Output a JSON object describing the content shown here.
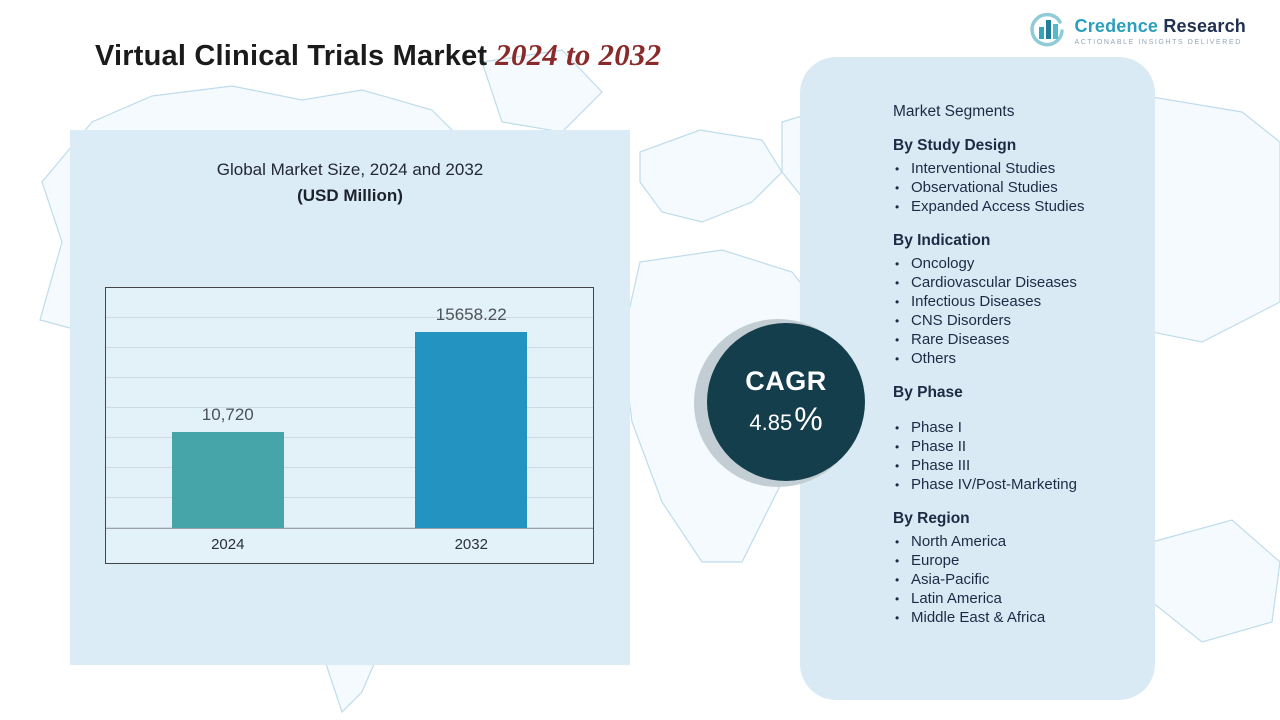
{
  "header": {
    "title_main": "Virtual Clinical Trials Market",
    "title_range": "2024 to 2032"
  },
  "logo": {
    "brand_primary": "Credence",
    "brand_secondary": "Research",
    "tagline": "Actionable Insights Delivered",
    "icon": "bar-chart-circle-icon",
    "brand_color": "#2b9fbd",
    "dark_color": "#22314f"
  },
  "chart_data": {
    "type": "bar",
    "title": "Global Market Size, 2024 and 2032",
    "subtitle": "(USD Million)",
    "categories": [
      "2024",
      "2032"
    ],
    "values": [
      10720,
      15658.22
    ],
    "value_labels": [
      "10,720",
      "15658.22"
    ],
    "bar_colors": [
      "#45a5a8",
      "#2394c2"
    ],
    "unit": "USD Million",
    "axis_range": [
      6000,
      17800
    ],
    "grid": true,
    "legend": "none"
  },
  "cagr": {
    "label": "CAGR",
    "value": "4.85",
    "unit": "%"
  },
  "segments": {
    "title": "Market Segments",
    "groups": [
      {
        "heading": "By Study Design",
        "items": [
          "Interventional Studies",
          "Observational Studies",
          "Expanded Access Studies"
        ]
      },
      {
        "heading": "By Indication",
        "items": [
          "Oncology",
          "Cardiovascular Diseases",
          "Infectious Diseases",
          "CNS Disorders",
          "Rare Diseases",
          "Others"
        ]
      },
      {
        "heading": "By Phase",
        "items": [
          "Phase I",
          "Phase II",
          "Phase III",
          "Phase IV/Post-Marketing"
        ]
      },
      {
        "heading": "By Region",
        "items": [
          "North America",
          "Europe",
          "Asia-Pacific",
          "Latin America",
          "Middle East & Africa"
        ]
      }
    ]
  },
  "colors": {
    "panel_bg": "#d9eaf4",
    "chart_panel_bg": "#dcecf6",
    "cagr_circle": "#143e4c",
    "title_range_red": "#8a2b2b",
    "map_outline": "#bfdcec"
  }
}
